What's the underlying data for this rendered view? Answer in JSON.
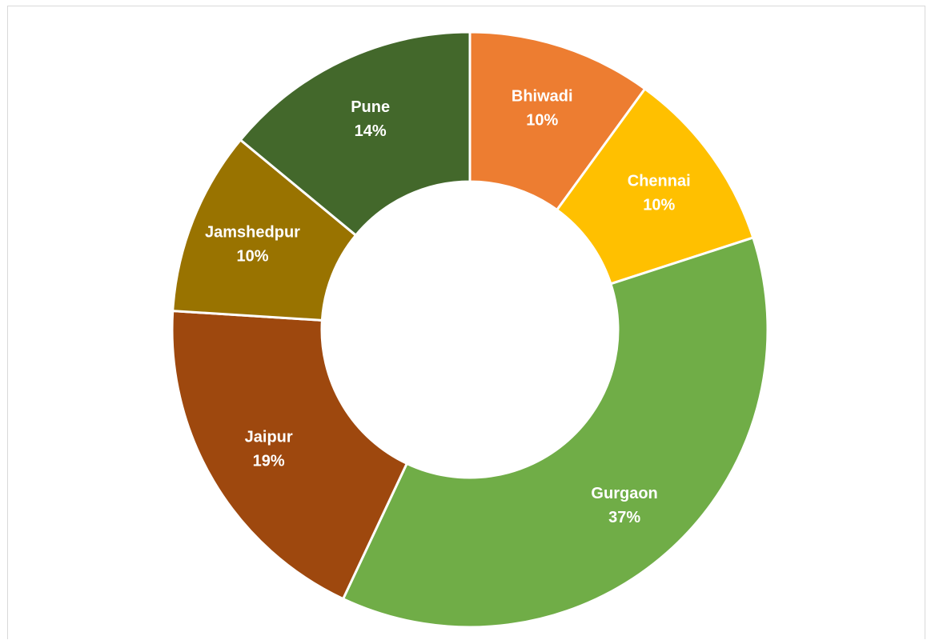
{
  "chart_data": {
    "type": "pie",
    "variant": "donut",
    "title": "",
    "categories": [
      "Bhiwadi",
      "Chennai",
      "Gurgaon",
      "Jaipur",
      "Jamshedpur",
      "Pune"
    ],
    "values": [
      10,
      10,
      37,
      19,
      10,
      14
    ],
    "labels": [
      "10%",
      "10%",
      "37%",
      "19%",
      "10%",
      "14%"
    ],
    "unit": "%",
    "start": "top",
    "direction": "clockwise",
    "legend": "none",
    "data_labels": "inside",
    "colors": [
      "#ED7D31",
      "#FFC000",
      "#70AD47",
      "#9E480E",
      "#997300",
      "#43682B"
    ],
    "label_color": "#FFFFFF"
  }
}
